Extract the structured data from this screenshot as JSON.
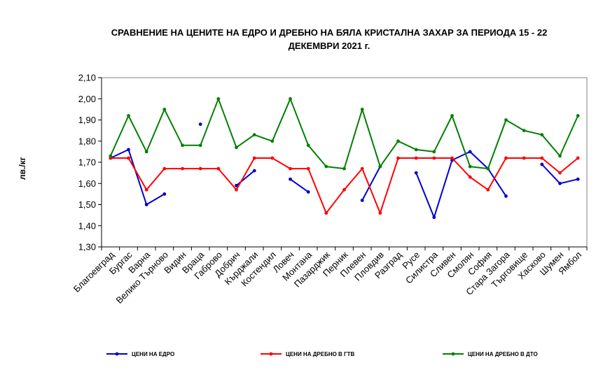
{
  "chart_data": {
    "type": "line",
    "title_line1": "СРАВНЕНИЕ НА ЦЕНИТЕ НА ЕДРО И ДРЕБНО НА БЯЛА КРИСТАЛНА ЗАХАР ЗА ПЕРИОДА 15 - 22",
    "title_line2": "ДЕКЕМВРИ 2021 г.",
    "ylabel": "лв./кг",
    "ylim": [
      1.3,
      2.1
    ],
    "yticks": [
      "2,10",
      "2,00",
      "1,90",
      "1,80",
      "1,70",
      "1,60",
      "1,50",
      "1,40",
      "1,30"
    ],
    "ytick_values": [
      2.1,
      2.0,
      1.9,
      1.8,
      1.7,
      1.6,
      1.5,
      1.4,
      1.3
    ],
    "categories": [
      "Благоевград",
      "Бургас",
      "Варна",
      "Велико Търново",
      "Видин",
      "Враца",
      "Габрово",
      "Добрич",
      "Кърджали",
      "Костендил",
      "Ловеч",
      "Монтана",
      "Пазарджик",
      "Перник",
      "Плевен",
      "Пловдив",
      "Разград",
      "Русе",
      "Силистра",
      "Сливен",
      "Смолян",
      "София",
      "Стара Загора",
      "Търговище",
      "Хасково",
      "Шумен",
      "Ямбол"
    ],
    "series": [
      {
        "name": "ЦЕНИ НА ЕДРО",
        "color": "#0000cc",
        "values": [
          1.72,
          1.76,
          1.5,
          1.55,
          null,
          1.88,
          null,
          1.59,
          1.66,
          null,
          1.62,
          1.56,
          null,
          null,
          1.52,
          1.68,
          null,
          1.65,
          1.44,
          1.71,
          1.75,
          1.67,
          1.54,
          null,
          1.69,
          1.6,
          1.62
        ]
      },
      {
        "name": "ЦЕНИ НА ДРЕБНО В ГТВ",
        "color": "#ff0000",
        "values": [
          1.72,
          1.72,
          1.57,
          1.67,
          1.67,
          1.67,
          1.67,
          1.57,
          1.72,
          1.72,
          1.67,
          1.67,
          1.46,
          1.57,
          1.67,
          1.46,
          1.72,
          1.72,
          1.72,
          1.72,
          1.63,
          1.57,
          1.72,
          1.72,
          1.72,
          1.65,
          1.72
        ]
      },
      {
        "name": "ЦЕНИ НА ДРЕБНО В ДТО",
        "color": "#008000",
        "values": [
          1.73,
          1.92,
          1.75,
          1.95,
          1.78,
          1.78,
          2.0,
          1.77,
          1.83,
          1.8,
          2.0,
          1.78,
          1.68,
          1.67,
          1.95,
          1.68,
          1.8,
          1.76,
          1.75,
          1.92,
          1.68,
          1.67,
          1.9,
          1.85,
          1.83,
          1.73,
          1.92
        ]
      }
    ],
    "grid": false,
    "legend": "bottom"
  }
}
